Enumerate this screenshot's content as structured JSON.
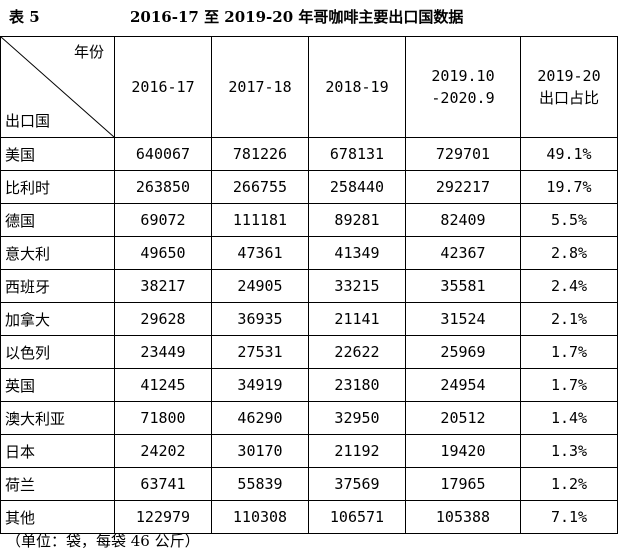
{
  "title": {
    "label": "表 5",
    "text": "2016-17 至 2019-20 年哥咖啡主要出口国数据"
  },
  "header": {
    "corner_top": "年份",
    "corner_bottom": "出口国",
    "col1": "2016-17",
    "col2": "2017-18",
    "col3": "2018-19",
    "col4_line1": "2019.10",
    "col4_line2": "-2020.9",
    "col5_line1": "2019-20",
    "col5_line2": "出口占比"
  },
  "rows": [
    {
      "country": "美国",
      "v1": "640067",
      "v2": "781226",
      "v3": "678131",
      "v4": "729701",
      "share": "49.1%"
    },
    {
      "country": "比利时",
      "v1": "263850",
      "v2": "266755",
      "v3": "258440",
      "v4": "292217",
      "share": "19.7%"
    },
    {
      "country": "德国",
      "v1": "69072",
      "v2": "111181",
      "v3": "89281",
      "v4": "82409",
      "share": "5.5%"
    },
    {
      "country": "意大利",
      "v1": "49650",
      "v2": "47361",
      "v3": "41349",
      "v4": "42367",
      "share": "2.8%"
    },
    {
      "country": "西班牙",
      "v1": "38217",
      "v2": "24905",
      "v3": "33215",
      "v4": "35581",
      "share": "2.4%"
    },
    {
      "country": "加拿大",
      "v1": "29628",
      "v2": "36935",
      "v3": "21141",
      "v4": "31524",
      "share": "2.1%"
    },
    {
      "country": "以色列",
      "v1": "23449",
      "v2": "27531",
      "v3": "22622",
      "v4": "25969",
      "share": "1.7%"
    },
    {
      "country": "英国",
      "v1": "41245",
      "v2": "34919",
      "v3": "23180",
      "v4": "24954",
      "share": "1.7%"
    },
    {
      "country": "澳大利亚",
      "v1": "71800",
      "v2": "46290",
      "v3": "32950",
      "v4": "20512",
      "share": "1.4%"
    },
    {
      "country": "日本",
      "v1": "24202",
      "v2": "30170",
      "v3": "21192",
      "v4": "19420",
      "share": "1.3%"
    },
    {
      "country": "荷兰",
      "v1": "63741",
      "v2": "55839",
      "v3": "37569",
      "v4": "17965",
      "share": "1.2%"
    },
    {
      "country": "其他",
      "v1": "122979",
      "v2": "110308",
      "v3": "106571",
      "v4": "105388",
      "share": "7.1%"
    }
  ],
  "note": "（单位：袋，每袋 46 公斤）"
}
